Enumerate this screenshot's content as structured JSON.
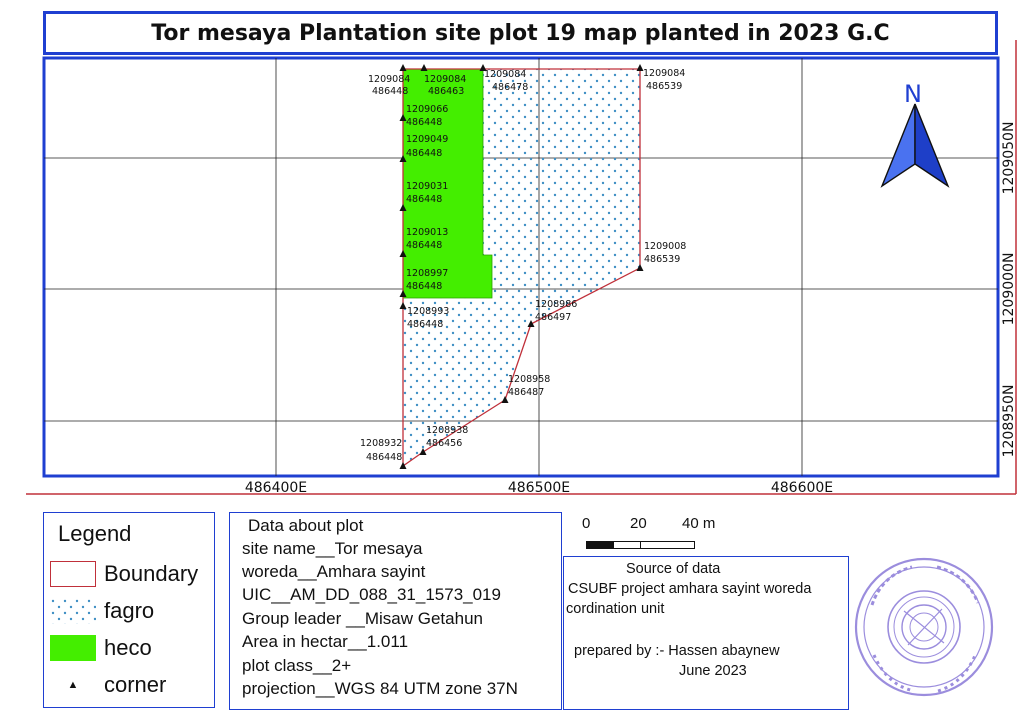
{
  "title": "Tor mesaya Plantation site plot 19 map planted in 2023 G.C",
  "north_label": "N",
  "colors": {
    "boundary": "#c0303a",
    "heco": "#44ee00",
    "fagro_dot": "#3f8fc4",
    "frame": "#1f3fd1"
  },
  "grid": {
    "easting_labels": [
      "486400E",
      "486500E",
      "486600E"
    ],
    "northing_labels": [
      "1209050N",
      "1209000N",
      "1208950N"
    ]
  },
  "corners": [
    {
      "n": "1209084",
      "e": "486448"
    },
    {
      "n": "1209084",
      "e": "486463"
    },
    {
      "n": "1209084",
      "e": "486478"
    },
    {
      "n": "1209084",
      "e": "486539"
    },
    {
      "n": "1209066",
      "e": "486448"
    },
    {
      "n": "1209049",
      "e": "486448"
    },
    {
      "n": "1209031",
      "e": "486448"
    },
    {
      "n": "1209013",
      "e": "486448"
    },
    {
      "n": "1209008",
      "e": "486539"
    },
    {
      "n": "1208997",
      "e": "486448"
    },
    {
      "n": "1208993",
      "e": "486448"
    },
    {
      "n": "1208986",
      "e": "486497"
    },
    {
      "n": "1208958",
      "e": "486487"
    },
    {
      "n": "1208938",
      "e": "486456"
    },
    {
      "n": "1208932",
      "e": "486448"
    }
  ],
  "legend": {
    "title": "Legend",
    "items": [
      {
        "label": "Boundary",
        "symbol": "boundary"
      },
      {
        "label": "fagro",
        "symbol": "fagro"
      },
      {
        "label": "heco",
        "symbol": "heco"
      },
      {
        "label": "corner",
        "symbol": "corner"
      }
    ]
  },
  "plot_info": {
    "heading": "Data about plot",
    "lines": [
      "site name__Tor mesaya",
      "woreda__Amhara sayint",
      "UIC__AM_DD_088_31_1573_019",
      "Group leader __Misaw Getahun",
      "Area in hectar__1.011",
      "plot class__2+",
      "projection__WGS 84 UTM zone 37N"
    ]
  },
  "scale_bar": {
    "labels": [
      "0",
      "20",
      "40 m"
    ]
  },
  "source": {
    "lines": [
      "Source of data",
      "CSUBF project amhara sayint woreda",
      "cordination unit",
      "prepared by :- Hassen abaynew",
      "June 2023"
    ]
  }
}
